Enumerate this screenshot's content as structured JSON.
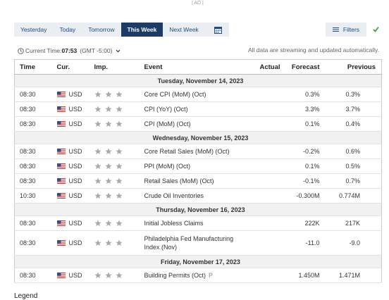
{
  "ad": "| AD |",
  "tabs": [
    "Yesterday",
    "Today",
    "Tomorrow",
    "This Week",
    "Next Week"
  ],
  "active_tab": 3,
  "filters": "Filters",
  "current_time": {
    "label": "Current Time:",
    "time": "07:53",
    "zone": "(GMT -5:00)"
  },
  "notice": "All data are streaming and updated automatically.",
  "table": {
    "headers": [
      "Time",
      "Cur.",
      "Imp.",
      "Event",
      "Actual",
      "Forecast",
      "Previous"
    ],
    "groups": [
      {
        "day": "Tuesday, November 14, 2023",
        "rows": [
          {
            "time": "08:30",
            "currency": "USD",
            "event": "Core CPI (MoM) (Oct)",
            "forecast": "0.3%",
            "previous": "0.3%"
          },
          {
            "time": "08:30",
            "currency": "USD",
            "event": "CPI (YoY) (Oct)",
            "forecast": "3.3%",
            "previous": "3.7%"
          },
          {
            "time": "08:30",
            "currency": "USD",
            "event": "CPI (MoM) (Oct)",
            "forecast": "0.1%",
            "previous": "0.4%"
          }
        ]
      },
      {
        "day": "Wednesday, November 15, 2023",
        "rows": [
          {
            "time": "08:30",
            "currency": "USD",
            "event": "Core Retail Sales (MoM) (Oct)",
            "forecast": "-0.2%",
            "previous": "0.6%"
          },
          {
            "time": "08:30",
            "currency": "USD",
            "event": "PPI (MoM) (Oct)",
            "forecast": "0.1%",
            "previous": "0.5%"
          },
          {
            "time": "08:30",
            "currency": "USD",
            "event": "Retail Sales (MoM) (Oct)",
            "forecast": "-0.1%",
            "previous": "0.7%"
          },
          {
            "time": "10:30",
            "currency": "USD",
            "event": "Crude Oil Inventories",
            "forecast": "-0.300M",
            "previous": "0.774M"
          }
        ]
      },
      {
        "day": "Thursday, November 16, 2023",
        "rows": [
          {
            "time": "08:30",
            "currency": "USD",
            "event": "Initial Jobless Claims",
            "forecast": "222K",
            "previous": "217K"
          },
          {
            "time": "08:30",
            "currency": "USD",
            "event": "Philadelphia Fed Manufacturing Index (Nov)",
            "forecast": "-11.0",
            "previous": "-9.0"
          }
        ]
      },
      {
        "day": "Friday, November 17, 2023",
        "rows": [
          {
            "time": "08:30",
            "currency": "USD",
            "event": "Building Permits (Oct)",
            "mark": "P",
            "forecast": "1.450M",
            "previous": "1.471M"
          }
        ]
      }
    ]
  },
  "legend": "Legend"
}
